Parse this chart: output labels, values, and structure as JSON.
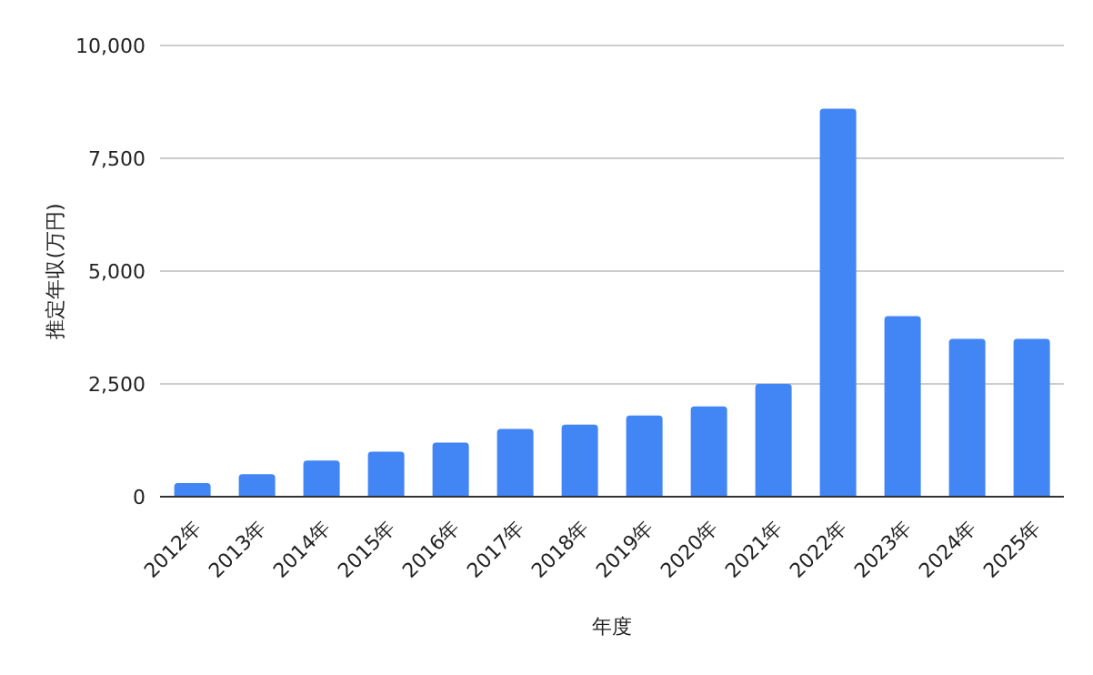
{
  "chart_data": {
    "type": "bar",
    "xlabel": "年度",
    "ylabel": "推定年収(万円)",
    "categories": [
      "2012年",
      "2013年",
      "2014年",
      "2015年",
      "2016年",
      "2017年",
      "2018年",
      "2019年",
      "2020年",
      "2021年",
      "2022年",
      "2023年",
      "2024年",
      "2025年"
    ],
    "values": [
      300,
      500,
      800,
      1000,
      1200,
      1500,
      1600,
      1800,
      2000,
      2500,
      8600,
      4000,
      3500,
      3500
    ],
    "color": "#4285f4",
    "ylim": [
      0,
      10000
    ],
    "yticks": [
      0,
      {
        "value": 2500,
        "label": "2,500"
      },
      {
        "value": 5000,
        "label": "5,000"
      },
      {
        "value": 7500,
        "label": "7,500"
      },
      {
        "value": 10000,
        "label": "10,000"
      }
    ],
    "grid": "y",
    "legend": false
  }
}
